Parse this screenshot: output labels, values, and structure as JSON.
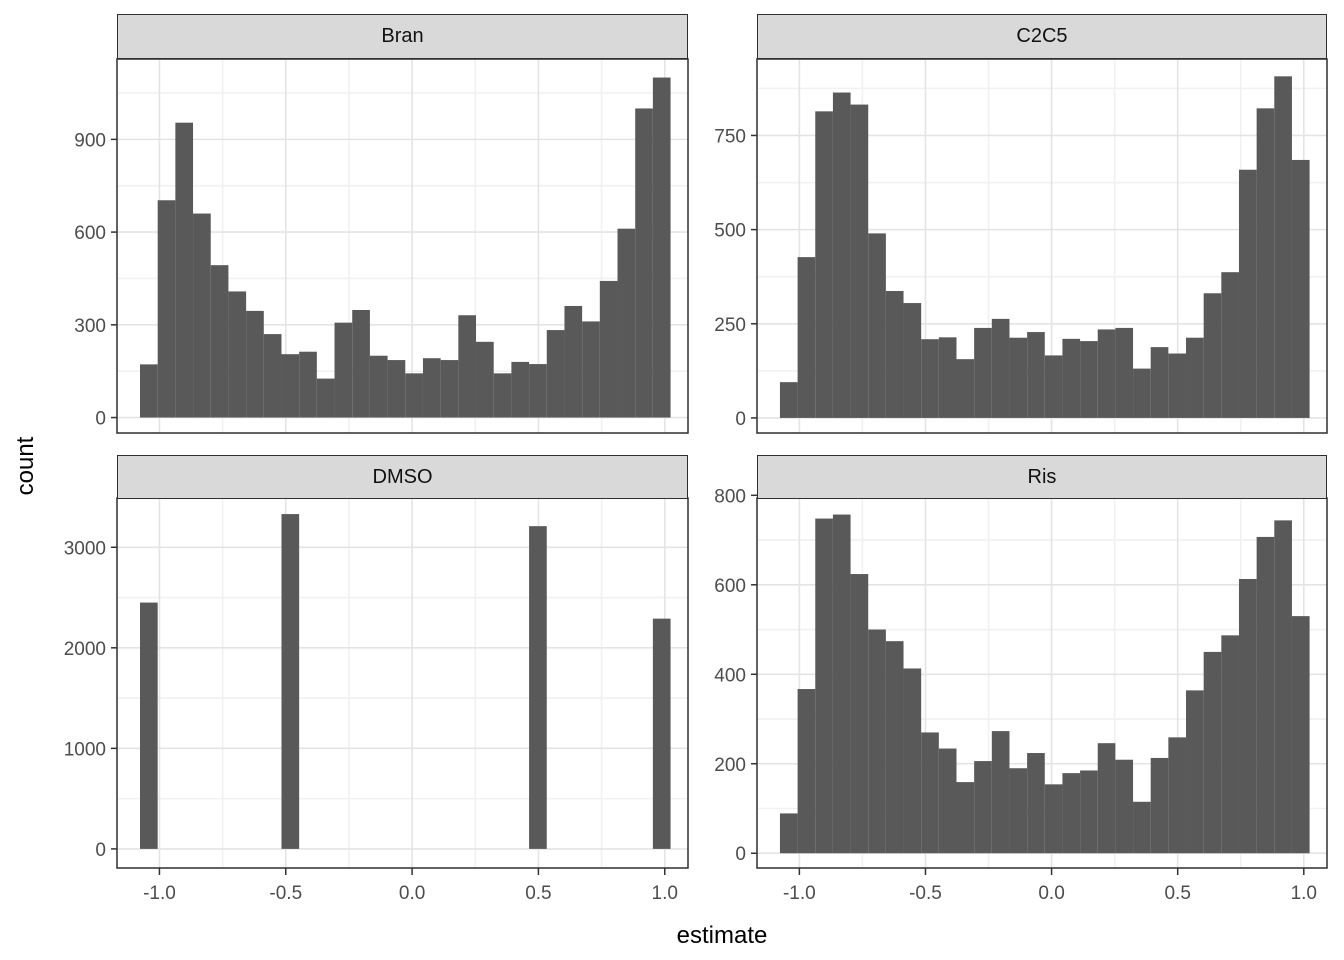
{
  "figure": {
    "kind": "faceted-histograms",
    "facet_titles": [
      "Bran",
      "C2C5",
      "DMSO",
      "Ris"
    ]
  },
  "axes": {
    "x_label": "estimate",
    "y_label": "count",
    "x_ticks": [
      -1.0,
      -0.5,
      0.0,
      0.5,
      1.0
    ],
    "x_tick_labels": [
      "-1.0",
      "-0.5",
      "0.0",
      "0.5",
      "1.0"
    ],
    "x_minor": [
      -0.75,
      -0.25,
      0.25,
      0.75
    ],
    "xlim": [
      -1.168,
      1.092
    ]
  },
  "colors": {
    "bar_fill": "#595959",
    "strip_bg": "#D9D9D9",
    "panel_border": "#2F2F2F",
    "grid_major": "#E4E4E4",
    "grid_minor": "#F1F1F1",
    "tick_text": "#4D4D4D",
    "tick_mark": "#333333"
  },
  "bins": {
    "start": -1.077,
    "width": 0.07,
    "count": 30
  },
  "chart_data": [
    {
      "type": "bar",
      "title": "Bran",
      "xlabel": "estimate",
      "ylabel": "count",
      "ylim": [
        -50,
        1160
      ],
      "y_ticks": [
        0,
        300,
        600,
        900
      ],
      "y_tick_labels": [
        "0",
        "300",
        "600",
        "900"
      ],
      "y_minor": [
        150,
        450,
        750,
        1050
      ],
      "counts": [
        172,
        703,
        954,
        660,
        493,
        408,
        345,
        270,
        205,
        213,
        126,
        307,
        348,
        200,
        186,
        143,
        192,
        186,
        331,
        245,
        143,
        180,
        173,
        283,
        361,
        311,
        442,
        611,
        1000,
        1100
      ]
    },
    {
      "type": "bar",
      "title": "C2C5",
      "xlabel": "estimate",
      "ylabel": "count",
      "ylim": [
        -40,
        953
      ],
      "y_ticks": [
        0,
        250,
        500,
        750
      ],
      "y_tick_labels": [
        "0",
        "250",
        "500",
        "750"
      ],
      "y_minor": [
        125,
        375,
        625,
        875
      ],
      "counts": [
        95,
        427,
        814,
        864,
        832,
        490,
        337,
        305,
        209,
        214,
        156,
        239,
        263,
        213,
        228,
        166,
        210,
        204,
        235,
        239,
        131,
        188,
        171,
        213,
        331,
        387,
        659,
        822,
        907,
        685
      ]
    },
    {
      "type": "bar",
      "title": "DMSO",
      "xlabel": "estimate",
      "ylabel": "count",
      "ylim": [
        -190,
        3490
      ],
      "y_ticks": [
        0,
        1000,
        2000,
        3000
      ],
      "y_tick_labels": [
        "0",
        "1000",
        "2000",
        "3000"
      ],
      "y_minor": [
        500,
        1500,
        2500
      ],
      "counts": [
        2450,
        0,
        0,
        0,
        0,
        0,
        0,
        0,
        3330,
        0,
        0,
        0,
        0,
        0,
        0,
        0,
        0,
        0,
        0,
        0,
        0,
        0,
        3210,
        0,
        0,
        0,
        0,
        0,
        0,
        2290
      ]
    },
    {
      "type": "bar",
      "title": "Ris",
      "xlabel": "estimate",
      "ylabel": "count",
      "ylim": [
        -33,
        794
      ],
      "y_ticks": [
        0,
        200,
        400,
        600,
        800
      ],
      "y_tick_labels": [
        "0",
        "200",
        "400",
        "600",
        "800"
      ],
      "y_minor": [
        100,
        300,
        500,
        700
      ],
      "counts": [
        89,
        367,
        748,
        757,
        624,
        500,
        474,
        413,
        270,
        234,
        159,
        206,
        273,
        190,
        224,
        154,
        179,
        185,
        246,
        209,
        115,
        213,
        259,
        364,
        450,
        487,
        613,
        707,
        744,
        530
      ]
    }
  ]
}
